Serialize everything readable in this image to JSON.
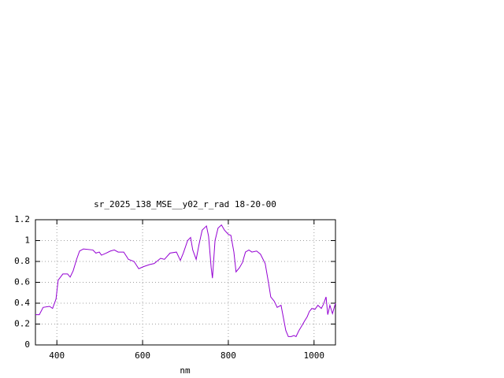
{
  "chart_data": {
    "type": "line",
    "title": "sr_2025_138_MSE__y02_r_rad 18-20-00",
    "x_label": "nm",
    "xlim": [
      350,
      1050
    ],
    "xticks": [
      400,
      600,
      800,
      1000
    ],
    "ylim": [
      0,
      1.2
    ],
    "yticks": [
      0,
      0.2,
      0.4,
      0.6,
      0.8,
      1,
      1.2
    ],
    "grid": true,
    "x": [
      350,
      359,
      368,
      383,
      390,
      398,
      403,
      414,
      425,
      431,
      438,
      446,
      453,
      462,
      484,
      491,
      499,
      504,
      515,
      525,
      534,
      543,
      556,
      567,
      580,
      591,
      602,
      616,
      627,
      642,
      651,
      664,
      679,
      688,
      695,
      705,
      712,
      717,
      725,
      732,
      739,
      749,
      754,
      760,
      763,
      769,
      776,
      784,
      791,
      800,
      806,
      813,
      818,
      826,
      833,
      840,
      848,
      855,
      866,
      875,
      886,
      894,
      899,
      907,
      914,
      923,
      929,
      934,
      940,
      947,
      953,
      958,
      965,
      971,
      978,
      984,
      989,
      995,
      1002,
      1009,
      1017,
      1022,
      1028,
      1032,
      1037,
      1043,
      1050
    ],
    "series": [
      {
        "color": "#9400d3",
        "values": [
          0.29,
          0.29,
          0.36,
          0.37,
          0.35,
          0.44,
          0.62,
          0.68,
          0.68,
          0.65,
          0.71,
          0.82,
          0.9,
          0.92,
          0.91,
          0.88,
          0.89,
          0.86,
          0.88,
          0.9,
          0.91,
          0.89,
          0.89,
          0.82,
          0.8,
          0.73,
          0.75,
          0.77,
          0.78,
          0.83,
          0.82,
          0.88,
          0.89,
          0.81,
          0.88,
          1.0,
          1.03,
          0.91,
          0.82,
          0.97,
          1.1,
          1.14,
          1.04,
          0.74,
          0.64,
          1.0,
          1.12,
          1.15,
          1.1,
          1.06,
          1.05,
          0.89,
          0.7,
          0.74,
          0.79,
          0.89,
          0.91,
          0.89,
          0.9,
          0.87,
          0.78,
          0.59,
          0.46,
          0.42,
          0.36,
          0.38,
          0.25,
          0.14,
          0.08,
          0.08,
          0.09,
          0.08,
          0.14,
          0.18,
          0.23,
          0.27,
          0.32,
          0.35,
          0.34,
          0.38,
          0.35,
          0.39,
          0.46,
          0.29,
          0.38,
          0.3,
          0.4
        ]
      }
    ]
  }
}
